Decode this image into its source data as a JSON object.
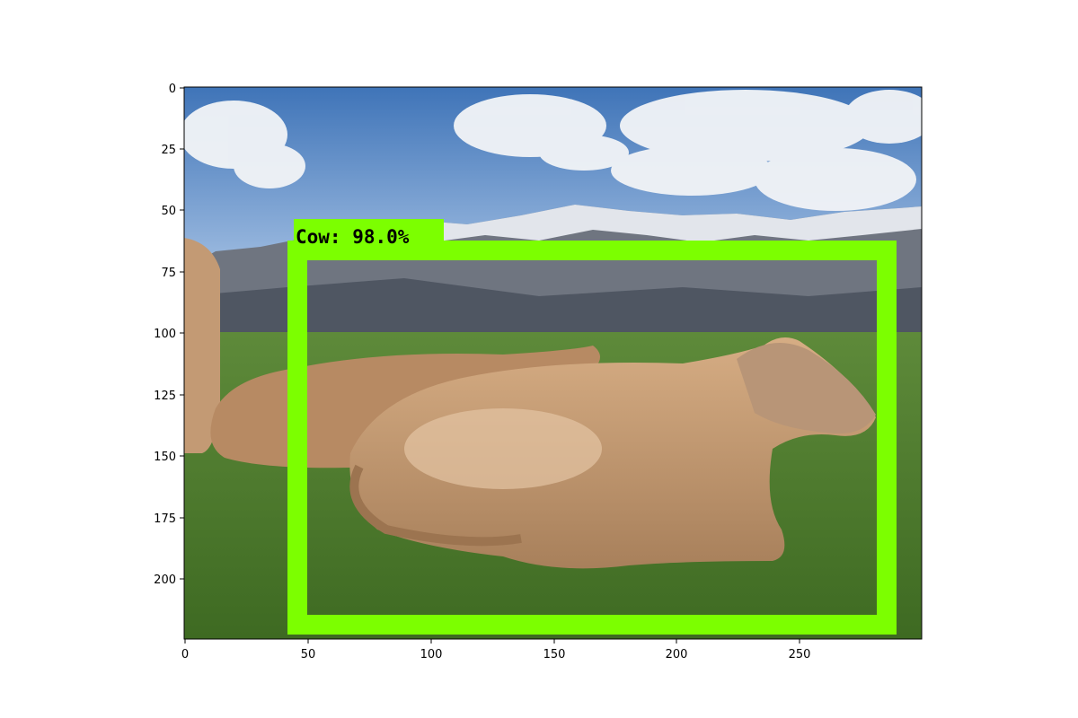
{
  "image": {
    "subject": "cow",
    "palette": {
      "sky": "#5f8fc8",
      "mountain": "#6f7580",
      "snow": "#eef2f6",
      "grass": "#4f7a2c",
      "cow": "#c79a70",
      "box": "#7cff00"
    }
  },
  "axes": {
    "x_ticks": [
      "0",
      "50",
      "100",
      "150",
      "200",
      "250"
    ],
    "y_ticks": [
      "0",
      "25",
      "50",
      "75",
      "100",
      "125",
      "150",
      "175",
      "200"
    ],
    "xlim": [
      0,
      300
    ],
    "ylim": [
      224,
      0
    ]
  },
  "detection": {
    "label": "Cow:  98.0%",
    "class": "Cow",
    "score": 98.0,
    "box": {
      "xmin": 45,
      "ymin": 66,
      "xmax": 287,
      "ymax": 220
    },
    "color": "#7cff00"
  }
}
